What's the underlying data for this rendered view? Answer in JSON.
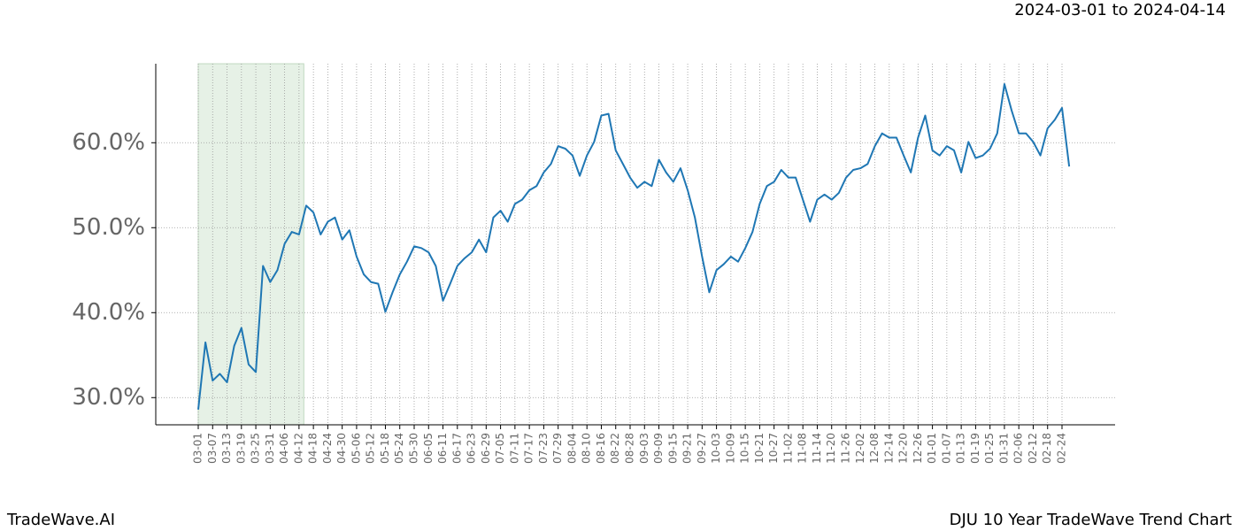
{
  "chart_data": {
    "type": "line",
    "subtitle": "2024-03-01 to 2024-04-14",
    "footer_left": "TradeWave.AI",
    "footer_right": "DJU 10 Year TradeWave Trend Chart",
    "highlight": [
      "2024-03-01",
      "2024-04-14"
    ],
    "highlight_color": "#d9ead9",
    "grid": true,
    "x": [
      "03-01",
      "03-04",
      "03-07",
      "03-10",
      "03-13",
      "03-16",
      "03-19",
      "03-22",
      "03-25",
      "03-28",
      "03-31",
      "04-03",
      "04-06",
      "04-09",
      "04-12",
      "04-15",
      "04-18",
      "04-21",
      "04-24",
      "04-27",
      "04-30",
      "05-03",
      "05-06",
      "05-09",
      "05-12",
      "05-15",
      "05-18",
      "05-21",
      "05-24",
      "05-27",
      "05-30",
      "06-02",
      "06-05",
      "06-08",
      "06-11",
      "06-14",
      "06-17",
      "06-20",
      "06-23",
      "06-26",
      "06-29",
      "07-02",
      "07-05",
      "07-08",
      "07-11",
      "07-14",
      "07-17",
      "07-20",
      "07-23",
      "07-26",
      "07-29",
      "08-01",
      "08-04",
      "08-07",
      "08-10",
      "08-13",
      "08-16",
      "08-19",
      "08-22",
      "08-25",
      "08-28",
      "08-31",
      "09-03",
      "09-06",
      "09-09",
      "09-12",
      "09-15",
      "09-18",
      "09-21",
      "09-24",
      "09-27",
      "09-30",
      "10-03",
      "10-06",
      "10-09",
      "10-12",
      "10-15",
      "10-18",
      "10-21",
      "10-24",
      "10-27",
      "10-30",
      "11-02",
      "11-05",
      "11-08",
      "11-11",
      "11-14",
      "11-17",
      "11-20",
      "11-23",
      "11-26",
      "11-29",
      "12-02",
      "12-05",
      "12-08",
      "12-11",
      "12-14",
      "12-17",
      "12-20",
      "12-23",
      "12-26",
      "12-29",
      "01-01",
      "01-04",
      "01-07",
      "01-10",
      "01-13",
      "01-16",
      "01-19",
      "01-22",
      "01-25",
      "01-28",
      "01-31",
      "02-03",
      "02-06",
      "02-09",
      "02-12",
      "02-15",
      "02-18",
      "02-21",
      "02-24",
      "02-27"
    ],
    "xticks": [
      "03-01",
      "03-07",
      "03-13",
      "03-19",
      "03-25",
      "03-31",
      "04-06",
      "04-12",
      "04-18",
      "04-24",
      "04-30",
      "05-06",
      "05-12",
      "05-18",
      "05-24",
      "05-30",
      "06-05",
      "06-11",
      "06-17",
      "06-23",
      "06-29",
      "07-05",
      "07-11",
      "07-17",
      "07-23",
      "07-29",
      "08-04",
      "08-10",
      "08-16",
      "08-22",
      "08-28",
      "09-03",
      "09-09",
      "09-15",
      "09-21",
      "09-27",
      "10-03",
      "10-09",
      "10-15",
      "10-21",
      "10-27",
      "11-02",
      "11-08",
      "11-14",
      "11-20",
      "11-26",
      "12-02",
      "12-08",
      "12-14",
      "12-20",
      "12-26",
      "01-01",
      "01-07",
      "01-13",
      "01-19",
      "01-25",
      "01-31",
      "02-06",
      "02-12",
      "02-18",
      "02-24"
    ],
    "series": [
      {
        "name": "DJU",
        "color": "#1f77b4",
        "values": [
          28.6,
          36.5,
          32.0,
          32.8,
          31.8,
          36.1,
          38.2,
          33.9,
          33.0,
          45.5,
          43.6,
          45.0,
          48.1,
          49.5,
          49.2,
          52.6,
          51.8,
          49.2,
          50.7,
          51.2,
          48.6,
          49.7,
          46.6,
          44.5,
          43.6,
          43.4,
          40.1,
          42.4,
          44.5,
          46.0,
          47.8,
          47.6,
          47.1,
          45.5,
          41.4,
          43.4,
          45.5,
          46.4,
          47.1,
          48.6,
          47.1,
          51.2,
          52.0,
          50.7,
          52.8,
          53.3,
          54.4,
          54.9,
          56.5,
          57.5,
          59.6,
          59.3,
          58.5,
          56.1,
          58.5,
          60.1,
          63.2,
          63.4,
          59.1,
          57.5,
          55.9,
          54.7,
          55.4,
          54.9,
          58.0,
          56.5,
          55.4,
          57.0,
          54.4,
          51.2,
          46.6,
          42.4,
          45.0,
          45.7,
          46.6,
          46.0,
          47.6,
          49.5,
          52.8,
          54.9,
          55.4,
          56.8,
          55.9,
          55.9,
          53.3,
          50.7,
          53.3,
          53.9,
          53.3,
          54.1,
          55.9,
          56.8,
          57.0,
          57.5,
          59.6,
          61.1,
          60.6,
          60.6,
          58.5,
          56.5,
          60.6,
          63.2,
          59.1,
          58.5,
          59.6,
          59.1,
          56.5,
          60.1,
          58.2,
          58.5,
          59.3,
          61.1,
          66.9,
          63.8,
          61.1,
          61.1,
          60.1,
          58.5,
          61.7,
          62.7,
          64.1,
          57.2
        ]
      }
    ],
    "ylim": [
      26.8,
      69.3
    ],
    "yticks": [
      {
        "value": 30,
        "label": "30.0%"
      },
      {
        "value": 40,
        "label": "40.0%"
      },
      {
        "value": 50,
        "label": "50.0%"
      },
      {
        "value": 60,
        "label": "60.0%"
      }
    ]
  }
}
